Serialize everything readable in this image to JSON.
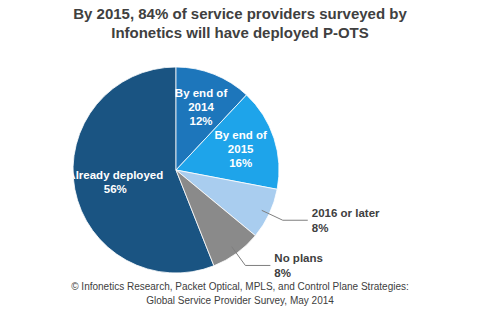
{
  "chart_data": {
    "type": "pie",
    "title": "By 2015, 84% of service providers surveyed by Infonetics will have deployed P-OTS",
    "categories": [
      "Already deployed",
      "By end of 2014",
      "By end of 2015",
      "2016 or later",
      "No plans"
    ],
    "values": [
      56,
      12,
      16,
      8,
      8
    ],
    "value_labels": [
      "56%",
      "12%",
      "16%",
      "8%",
      "8%"
    ],
    "colors": [
      "#1a5482",
      "#1d76bb",
      "#1ea4ea",
      "#a9cdef",
      "#8a8a8a"
    ],
    "data_labels": true,
    "source": [
      "© Infonetics Research, Packet Optical, MPLS, and Control Plane Strategies:",
      "Global Service Provider Survey, May 2014"
    ]
  }
}
